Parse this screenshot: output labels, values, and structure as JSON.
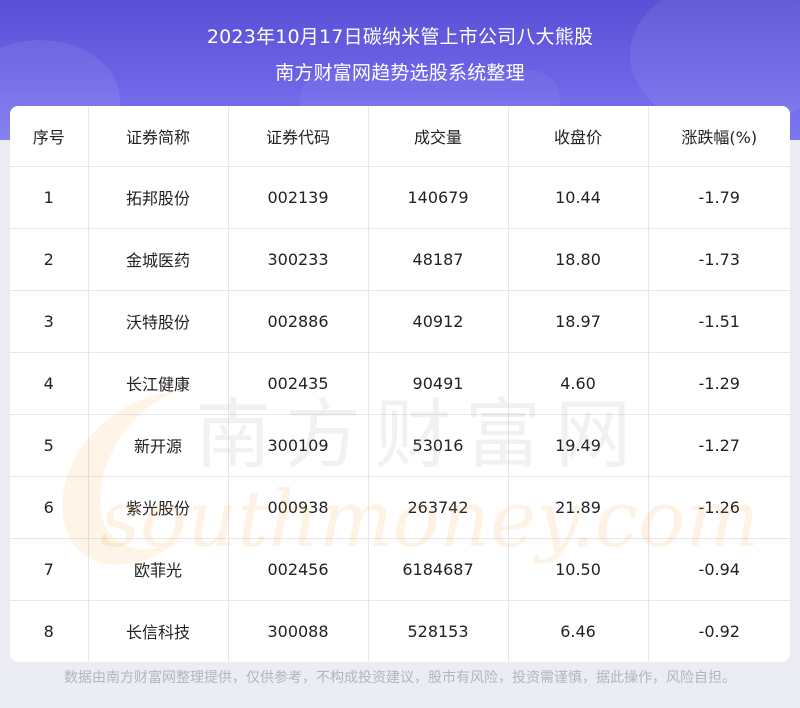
{
  "header": {
    "title_line1": "2023年10月17日碳纳米管上市公司八大熊股",
    "title_line2": "南方财富网趋势选股系统整理"
  },
  "table": {
    "columns": [
      "序号",
      "证券简称",
      "证券代码",
      "成交量",
      "收盘价",
      "涨跌幅(%)"
    ],
    "rows": [
      [
        "1",
        "拓邦股份",
        "002139",
        "140679",
        "10.44",
        "-1.79"
      ],
      [
        "2",
        "金城医药",
        "300233",
        "48187",
        "18.80",
        "-1.73"
      ],
      [
        "3",
        "沃特股份",
        "002886",
        "40912",
        "18.97",
        "-1.51"
      ],
      [
        "4",
        "长江健康",
        "002435",
        "90491",
        "4.60",
        "-1.29"
      ],
      [
        "5",
        "新开源",
        "300109",
        "53016",
        "19.49",
        "-1.27"
      ],
      [
        "6",
        "紫光股份",
        "000938",
        "263742",
        "21.89",
        "-1.26"
      ],
      [
        "7",
        "欧菲光",
        "002456",
        "6184687",
        "10.50",
        "-0.94"
      ],
      [
        "8",
        "长信科技",
        "300088",
        "528153",
        "6.46",
        "-0.92"
      ]
    ]
  },
  "watermark": {
    "cn_text": "南方财富网",
    "en_text": "southmoney.com"
  },
  "footer": {
    "disclaimer": "数据由南方财富网整理提供，仅供参考，不构成投资建议，股市有风险，投资需谨慎，据此操作，风险自担。"
  },
  "colors": {
    "header_top": "#5a4fd6",
    "header_bottom": "#7d78ef",
    "page_bg": "#ececf4",
    "watermark": "#f3a23a"
  }
}
